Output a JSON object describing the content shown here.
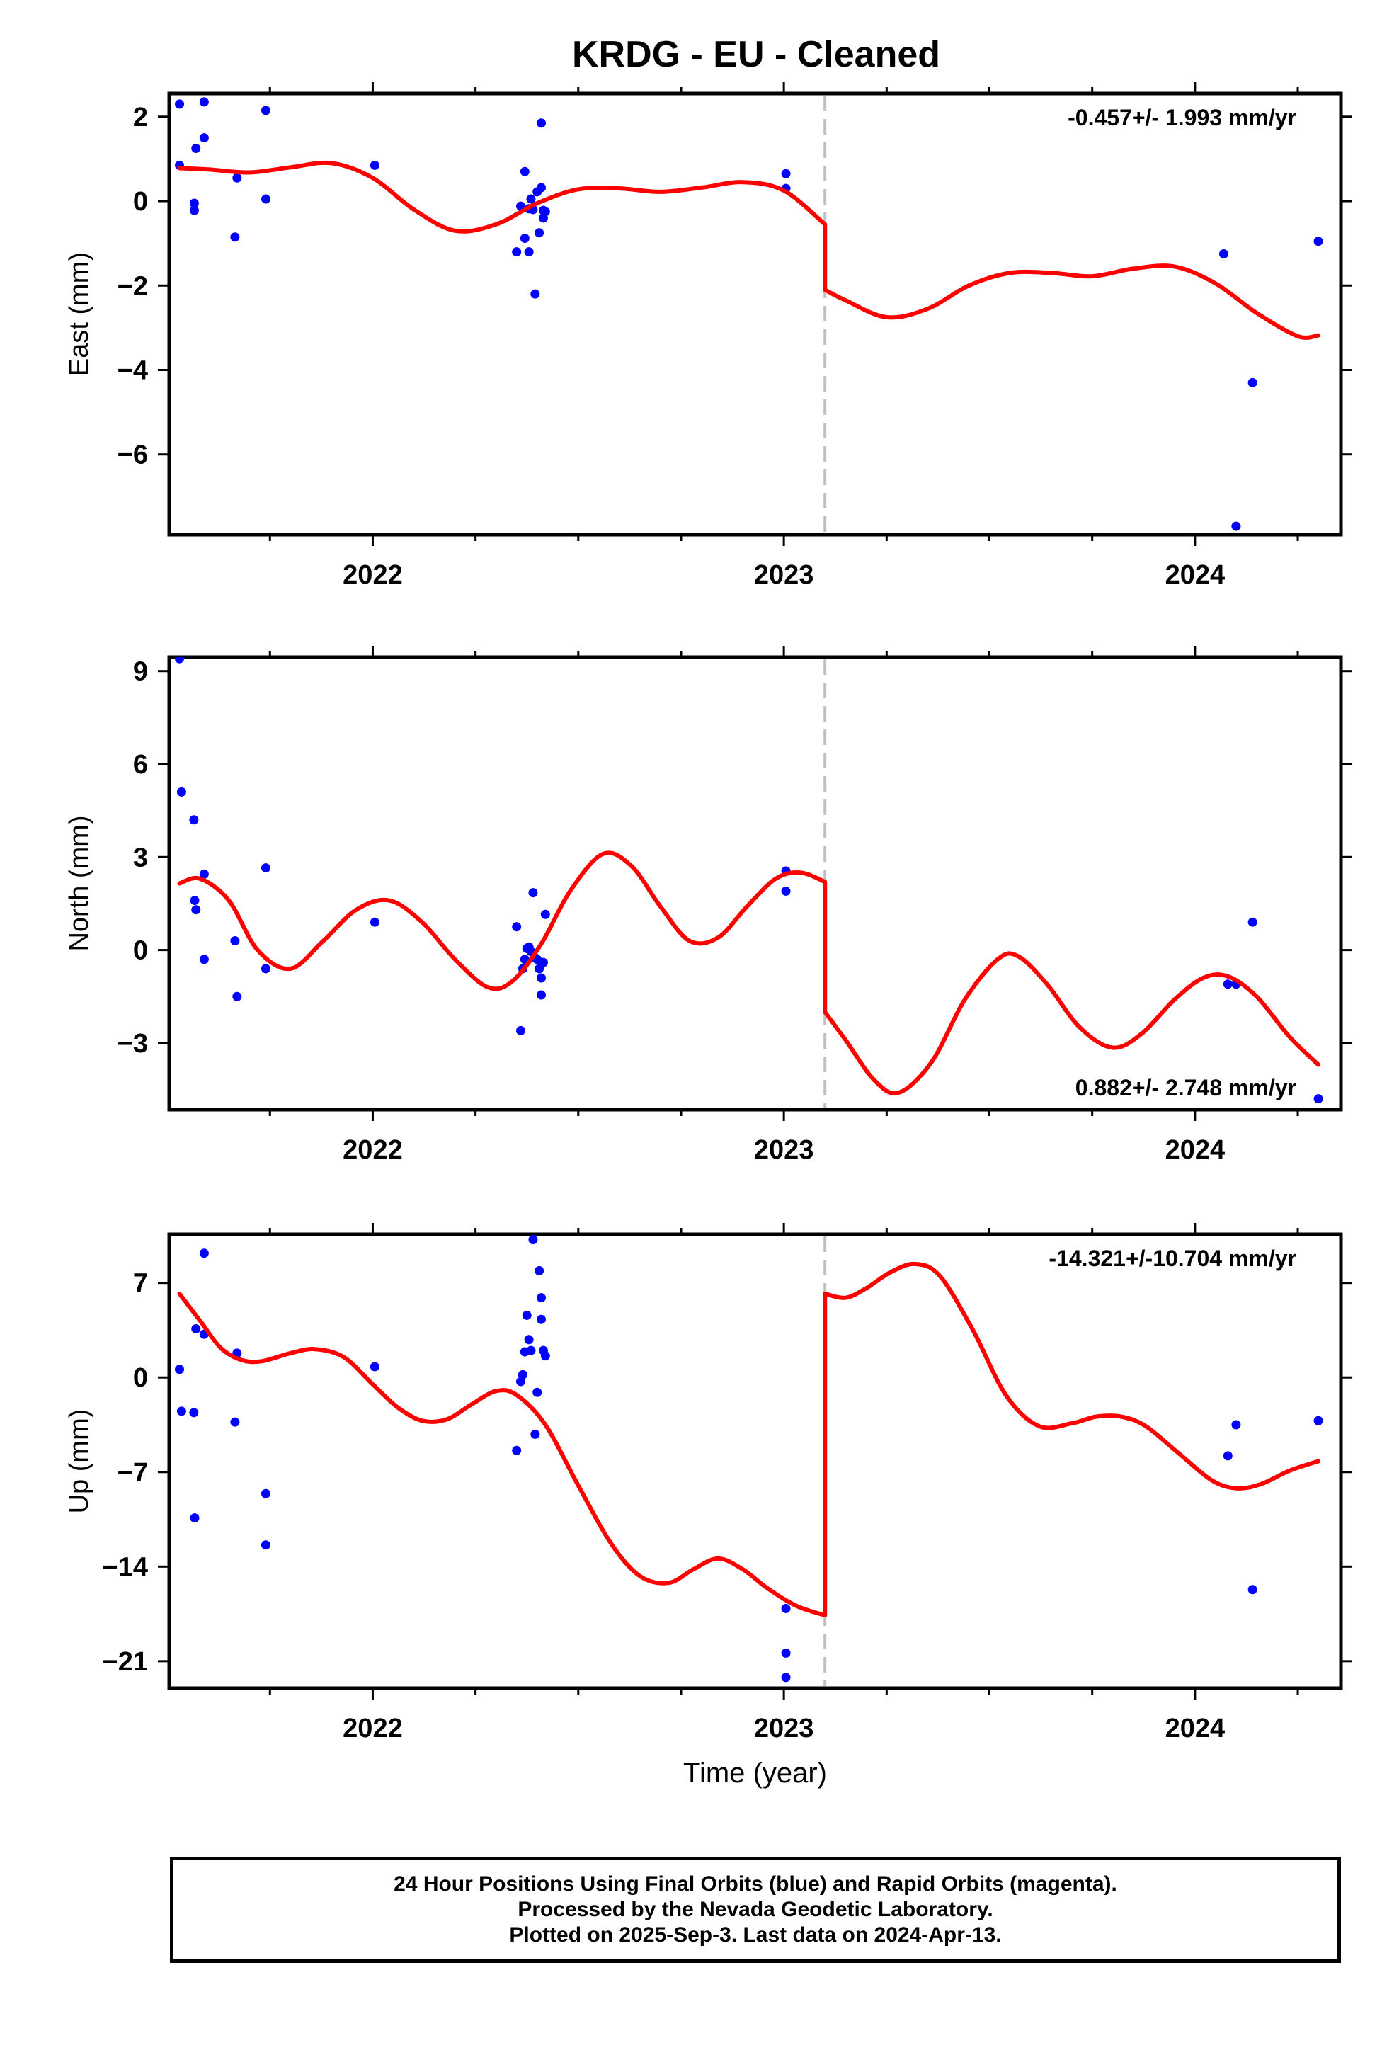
{
  "title": "KRDG  - EU - Cleaned",
  "colors": {
    "final": "#0000ff",
    "model": "#ff0000",
    "break": "#c0c0c0",
    "axis": "#000000"
  },
  "chart_data": [
    {
      "type": "scatter",
      "panel": "east",
      "ylabel": "East (mm)",
      "xlabel": "",
      "xlim": [
        2021.505,
        2024.355
      ],
      "ylim": [
        -7.9,
        2.55
      ],
      "yticks": [
        2,
        0,
        -2,
        -4,
        -6
      ],
      "xticks": [
        2022,
        2023,
        2024
      ],
      "break_x": 2023.1,
      "annotation": "-0.457+/- 1.993 mm/yr",
      "annotation_pos": "top-right",
      "points": [
        [
          2021.53,
          2.3
        ],
        [
          2021.53,
          0.85
        ],
        [
          2021.566,
          -0.05
        ],
        [
          2021.566,
          -0.22
        ],
        [
          2021.57,
          1.25
        ],
        [
          2021.59,
          2.35
        ],
        [
          2021.59,
          1.5
        ],
        [
          2021.665,
          -0.85
        ],
        [
          2021.67,
          0.55
        ],
        [
          2021.74,
          2.15
        ],
        [
          2021.74,
          0.05
        ],
        [
          2022.005,
          0.85
        ],
        [
          2022.35,
          -1.2
        ],
        [
          2022.36,
          -0.12
        ],
        [
          2022.37,
          0.7
        ],
        [
          2022.37,
          -0.88
        ],
        [
          2022.38,
          -1.2
        ],
        [
          2022.38,
          -0.18
        ],
        [
          2022.385,
          0.05
        ],
        [
          2022.39,
          -0.2
        ],
        [
          2022.395,
          -2.2
        ],
        [
          2022.4,
          0.22
        ],
        [
          2022.405,
          -0.75
        ],
        [
          2022.41,
          0.32
        ],
        [
          2022.41,
          1.85
        ],
        [
          2022.415,
          -0.22
        ],
        [
          2022.415,
          -0.4
        ],
        [
          2022.42,
          -0.25
        ],
        [
          2023.005,
          0.65
        ],
        [
          2023.005,
          0.3
        ],
        [
          2024.07,
          -1.25
        ],
        [
          2024.1,
          -7.7
        ],
        [
          2024.14,
          -4.3
        ],
        [
          2024.3,
          -0.95
        ]
      ],
      "model": [
        [
          2021.53,
          0.78
        ],
        [
          2021.6,
          0.75
        ],
        [
          2021.7,
          0.68
        ],
        [
          2021.8,
          0.8
        ],
        [
          2021.9,
          0.9
        ],
        [
          2022.0,
          0.55
        ],
        [
          2022.1,
          -0.2
        ],
        [
          2022.2,
          -0.7
        ],
        [
          2022.3,
          -0.55
        ],
        [
          2022.4,
          -0.05
        ],
        [
          2022.5,
          0.28
        ],
        [
          2022.6,
          0.3
        ],
        [
          2022.7,
          0.22
        ],
        [
          2022.8,
          0.32
        ],
        [
          2022.9,
          0.45
        ],
        [
          2023.0,
          0.25
        ],
        [
          2023.1,
          -0.55
        ],
        [
          2023.1,
          -2.1
        ],
        [
          2023.15,
          -2.35
        ],
        [
          2023.25,
          -2.75
        ],
        [
          2023.35,
          -2.55
        ],
        [
          2023.45,
          -2.0
        ],
        [
          2023.55,
          -1.7
        ],
        [
          2023.65,
          -1.7
        ],
        [
          2023.75,
          -1.78
        ],
        [
          2023.85,
          -1.6
        ],
        [
          2023.95,
          -1.55
        ],
        [
          2024.05,
          -1.95
        ],
        [
          2024.15,
          -2.65
        ],
        [
          2024.25,
          -3.2
        ],
        [
          2024.3,
          -3.18
        ]
      ]
    },
    {
      "type": "scatter",
      "panel": "north",
      "ylabel": "North (mm)",
      "xlabel": "",
      "xlim": [
        2021.505,
        2024.355
      ],
      "ylim": [
        -5.15,
        9.45
      ],
      "yticks": [
        9,
        6,
        3,
        0,
        -3
      ],
      "xticks": [
        2022,
        2023,
        2024
      ],
      "break_x": 2023.1,
      "annotation": "0.882+/- 2.748 mm/yr",
      "annotation_pos": "bottom-right",
      "points": [
        [
          2021.53,
          9.4
        ],
        [
          2021.535,
          5.1
        ],
        [
          2021.565,
          4.2
        ],
        [
          2021.567,
          1.6
        ],
        [
          2021.57,
          1.3
        ],
        [
          2021.59,
          2.45
        ],
        [
          2021.59,
          -0.3
        ],
        [
          2021.665,
          0.3
        ],
        [
          2021.67,
          -1.5
        ],
        [
          2021.74,
          2.65
        ],
        [
          2021.74,
          -0.6
        ],
        [
          2022.005,
          0.9
        ],
        [
          2022.35,
          0.75
        ],
        [
          2022.36,
          -2.6
        ],
        [
          2022.365,
          -0.6
        ],
        [
          2022.37,
          -0.3
        ],
        [
          2022.375,
          0.05
        ],
        [
          2022.38,
          0.1
        ],
        [
          2022.385,
          -0.05
        ],
        [
          2022.39,
          1.85
        ],
        [
          2022.395,
          -0.25
        ],
        [
          2022.4,
          -0.3
        ],
        [
          2022.405,
          -0.6
        ],
        [
          2022.41,
          -0.9
        ],
        [
          2022.41,
          -1.45
        ],
        [
          2022.415,
          -0.4
        ],
        [
          2022.42,
          1.15
        ],
        [
          2023.005,
          2.55
        ],
        [
          2023.005,
          1.9
        ],
        [
          2024.08,
          -1.1
        ],
        [
          2024.1,
          -1.1
        ],
        [
          2024.14,
          0.9
        ],
        [
          2024.3,
          -4.8
        ]
      ],
      "model": [
        [
          2021.53,
          2.15
        ],
        [
          2021.58,
          2.3
        ],
        [
          2021.65,
          1.6
        ],
        [
          2021.72,
          0.0
        ],
        [
          2021.8,
          -0.6
        ],
        [
          2021.88,
          0.3
        ],
        [
          2021.96,
          1.3
        ],
        [
          2022.04,
          1.6
        ],
        [
          2022.12,
          0.9
        ],
        [
          2022.2,
          -0.3
        ],
        [
          2022.28,
          -1.2
        ],
        [
          2022.34,
          -1.0
        ],
        [
          2022.41,
          0.2
        ],
        [
          2022.48,
          1.9
        ],
        [
          2022.56,
          3.1
        ],
        [
          2022.63,
          2.7
        ],
        [
          2022.7,
          1.4
        ],
        [
          2022.77,
          0.3
        ],
        [
          2022.84,
          0.4
        ],
        [
          2022.91,
          1.4
        ],
        [
          2022.98,
          2.3
        ],
        [
          2023.04,
          2.5
        ],
        [
          2023.1,
          2.2
        ],
        [
          2023.1,
          -2.0
        ],
        [
          2023.15,
          -2.9
        ],
        [
          2023.22,
          -4.2
        ],
        [
          2023.28,
          -4.6
        ],
        [
          2023.36,
          -3.6
        ],
        [
          2023.44,
          -1.6
        ],
        [
          2023.52,
          -0.3
        ],
        [
          2023.57,
          -0.2
        ],
        [
          2023.64,
          -1.1
        ],
        [
          2023.72,
          -2.5
        ],
        [
          2023.8,
          -3.15
        ],
        [
          2023.87,
          -2.7
        ],
        [
          2023.95,
          -1.6
        ],
        [
          2024.02,
          -0.9
        ],
        [
          2024.08,
          -0.85
        ],
        [
          2024.15,
          -1.5
        ],
        [
          2024.23,
          -2.8
        ],
        [
          2024.3,
          -3.7
        ]
      ]
    },
    {
      "type": "scatter",
      "panel": "up",
      "ylabel": "Up (mm)",
      "xlabel": "Time (year)",
      "xlim": [
        2021.505,
        2024.355
      ],
      "ylim": [
        -23.0,
        10.6
      ],
      "yticks": [
        7,
        0,
        -7,
        -14,
        -21
      ],
      "xticks": [
        2022,
        2023,
        2024
      ],
      "break_x": 2023.1,
      "annotation": "-14.321+/-10.704 mm/yr",
      "annotation_pos": "top-right",
      "points": [
        [
          2021.53,
          0.6
        ],
        [
          2021.535,
          -2.5
        ],
        [
          2021.565,
          -2.6
        ],
        [
          2021.567,
          -10.4
        ],
        [
          2021.57,
          3.6
        ],
        [
          2021.59,
          9.2
        ],
        [
          2021.59,
          3.2
        ],
        [
          2021.665,
          -3.3
        ],
        [
          2021.67,
          1.8
        ],
        [
          2021.74,
          -8.6
        ],
        [
          2021.74,
          -12.4
        ],
        [
          2022.005,
          0.8
        ],
        [
          2022.35,
          -5.4
        ],
        [
          2022.36,
          -0.3
        ],
        [
          2022.365,
          0.2
        ],
        [
          2022.37,
          1.9
        ],
        [
          2022.375,
          4.6
        ],
        [
          2022.38,
          2.8
        ],
        [
          2022.385,
          2.0
        ],
        [
          2022.39,
          10.2
        ],
        [
          2022.395,
          -4.2
        ],
        [
          2022.4,
          -1.1
        ],
        [
          2022.405,
          7.9
        ],
        [
          2022.41,
          5.9
        ],
        [
          2022.41,
          4.3
        ],
        [
          2022.415,
          2.0
        ],
        [
          2022.42,
          1.6
        ],
        [
          2023.005,
          -17.1
        ],
        [
          2023.005,
          -20.4
        ],
        [
          2023.005,
          -22.2
        ],
        [
          2024.08,
          -5.8
        ],
        [
          2024.1,
          -3.5
        ],
        [
          2024.14,
          -15.7
        ],
        [
          2024.3,
          -3.2
        ]
      ],
      "model": [
        [
          2021.53,
          6.2
        ],
        [
          2021.58,
          4.2
        ],
        [
          2021.63,
          2.2
        ],
        [
          2021.68,
          1.3
        ],
        [
          2021.73,
          1.2
        ],
        [
          2021.8,
          1.8
        ],
        [
          2021.86,
          2.1
        ],
        [
          2021.93,
          1.5
        ],
        [
          2022.0,
          -0.5
        ],
        [
          2022.06,
          -2.2
        ],
        [
          2022.12,
          -3.2
        ],
        [
          2022.18,
          -3.1
        ],
        [
          2022.24,
          -2.0
        ],
        [
          2022.3,
          -1.0
        ],
        [
          2022.35,
          -1.3
        ],
        [
          2022.42,
          -3.5
        ],
        [
          2022.5,
          -8.0
        ],
        [
          2022.58,
          -12.3
        ],
        [
          2022.65,
          -14.7
        ],
        [
          2022.72,
          -15.2
        ],
        [
          2022.78,
          -14.2
        ],
        [
          2022.84,
          -13.4
        ],
        [
          2022.9,
          -14.2
        ],
        [
          2022.96,
          -15.6
        ],
        [
          2023.03,
          -16.9
        ],
        [
          2023.1,
          -17.6
        ],
        [
          2023.1,
          6.2
        ],
        [
          2023.15,
          5.9
        ],
        [
          2023.2,
          6.6
        ],
        [
          2023.26,
          7.8
        ],
        [
          2023.32,
          8.4
        ],
        [
          2023.38,
          7.5
        ],
        [
          2023.46,
          3.5
        ],
        [
          2023.54,
          -1.3
        ],
        [
          2023.62,
          -3.6
        ],
        [
          2023.7,
          -3.4
        ],
        [
          2023.76,
          -2.9
        ],
        [
          2023.82,
          -2.9
        ],
        [
          2023.88,
          -3.6
        ],
        [
          2023.96,
          -5.6
        ],
        [
          2024.04,
          -7.6
        ],
        [
          2024.1,
          -8.2
        ],
        [
          2024.16,
          -7.9
        ],
        [
          2024.23,
          -6.9
        ],
        [
          2024.3,
          -6.2
        ]
      ]
    }
  ],
  "footer": {
    "line1": "24 Hour Positions Using Final Orbits (blue) and Rapid Orbits (magenta).",
    "line2": "Processed by the Nevada Geodetic Laboratory.",
    "line3": "Plotted on 2025-Sep-3. Last data on 2024-Apr-13."
  }
}
